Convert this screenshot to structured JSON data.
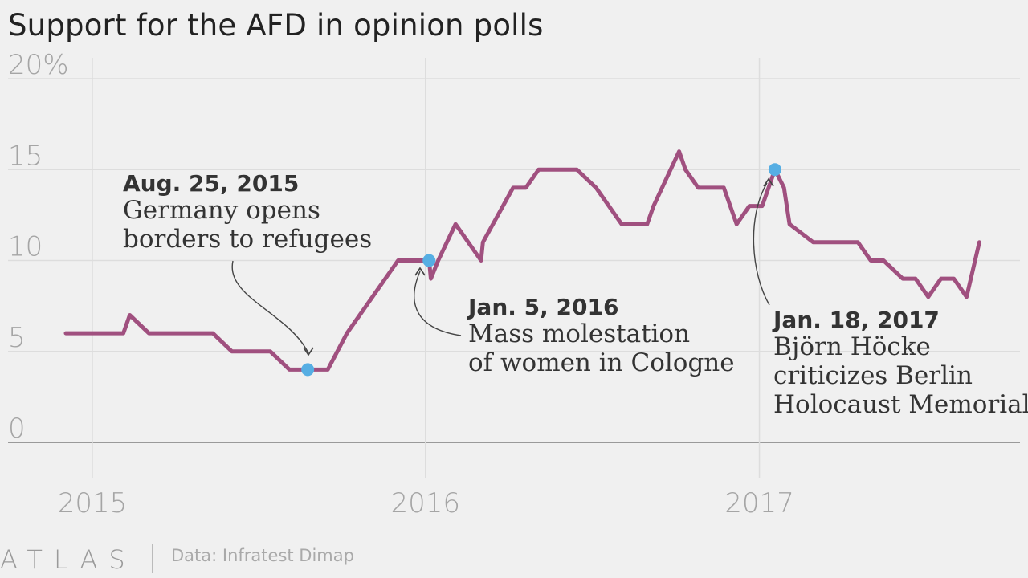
{
  "title": "Support for the AFD in opinion polls",
  "footer": {
    "logo": "ATLAS",
    "source": "Data: Infratest Dimap"
  },
  "colors": {
    "line": "#a0507f",
    "marker": "#56aee3",
    "grid": "#dddddd",
    "tick": "#a5a5a5"
  },
  "chart_data": {
    "type": "line",
    "title": "Support for the AFD in opinion polls",
    "xlabel": "",
    "ylabel": "",
    "ylim": [
      0,
      20
    ],
    "xlim": [
      "2014-11-25",
      "2017-10-01"
    ],
    "y_ticks": [
      0,
      5,
      10,
      15,
      20
    ],
    "y_tick_labels": [
      "0",
      "5",
      "10",
      "15",
      "20%"
    ],
    "x_ticks": [
      "2015-01-01",
      "2016-01-01",
      "2017-01-01"
    ],
    "x_tick_labels": [
      "2015",
      "2016",
      "2017"
    ],
    "grid": true,
    "legend": "none",
    "x": [
      "2014-12-03",
      "2015-01-07",
      "2015-02-04",
      "2015-02-11",
      "2015-03-04",
      "2015-04-01",
      "2015-05-06",
      "2015-05-13",
      "2015-06-03",
      "2015-07-01",
      "2015-07-15",
      "2015-08-05",
      "2015-08-25",
      "2015-09-02",
      "2015-09-16",
      "2015-10-07",
      "2015-10-21",
      "2015-11-04",
      "2015-12-02",
      "2016-01-05",
      "2016-01-07",
      "2016-01-15",
      "2016-02-03",
      "2016-03-02",
      "2016-03-04",
      "2016-04-06",
      "2016-04-20",
      "2016-05-04",
      "2016-06-01",
      "2016-06-15",
      "2016-07-06",
      "2016-08-03",
      "2016-08-31",
      "2016-09-07",
      "2016-10-05",
      "2016-10-12",
      "2016-10-26",
      "2016-11-23",
      "2016-12-07",
      "2016-12-21",
      "2017-01-04",
      "2017-01-18",
      "2017-01-28",
      "2017-02-03",
      "2017-03-01",
      "2017-03-15",
      "2017-04-05",
      "2017-04-19",
      "2017-05-03",
      "2017-05-17",
      "2017-06-07",
      "2017-06-21",
      "2017-07-05",
      "2017-07-19",
      "2017-08-02",
      "2017-08-16",
      "2017-08-30"
    ],
    "series": [
      {
        "values": [
          6,
          6,
          6,
          7,
          6,
          6,
          6,
          6,
          5,
          5,
          5,
          4,
          4,
          4,
          4,
          6,
          7,
          8,
          10,
          10,
          9,
          10,
          12,
          10,
          11,
          14,
          14,
          15,
          15,
          15,
          14,
          12,
          12,
          13,
          16,
          15,
          14,
          14,
          12,
          13,
          13,
          15,
          14,
          12,
          11,
          11,
          11,
          11,
          10,
          10,
          9,
          9,
          8,
          9,
          9,
          8,
          11
        ]
      }
    ],
    "highlights": [
      {
        "x": "2015-08-25",
        "y": 4
      },
      {
        "x": "2016-01-05",
        "y": 10
      },
      {
        "x": "2017-01-18",
        "y": 15
      }
    ],
    "annotations": [
      {
        "date_label": "Aug. 25, 2015",
        "text": [
          "Germany opens",
          "borders to refugees"
        ]
      },
      {
        "date_label": "Jan. 5, 2016",
        "text": [
          "Mass molestation",
          "of women in Cologne"
        ]
      },
      {
        "date_label": "Jan. 18, 2017",
        "text": [
          "Björn Höcke",
          "criticizes Berlin",
          "Holocaust Memorial"
        ]
      }
    ]
  }
}
